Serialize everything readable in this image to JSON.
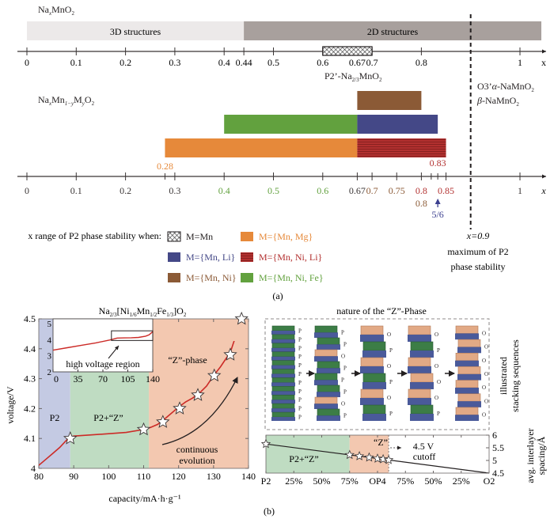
{
  "colors": {
    "axis": "#3a3535",
    "struct3d": "#ece9e9",
    "struct2d": "#a8a09d",
    "mg": "#e6893a",
    "li": "#444887",
    "ni": "#8b5a36",
    "nili": "#b2302f",
    "nife": "#62a13e",
    "dashed": "#231f20",
    "p2_bg": "#c4cae3",
    "p2z_bg": "#bfdcc2",
    "z_bg": "#f3c8b0",
    "curve": "#cc2b27",
    "arrow_blue": "#3b3f8f"
  },
  "panel_a": {
    "label": "(a)",
    "top": {
      "formula_parts": [
        "Na",
        "x",
        "MnO",
        "2"
      ],
      "structures": [
        {
          "label": "3D structures",
          "from": 0,
          "to": 0.44
        },
        {
          "label": "2D structures",
          "from": 0.44,
          "to": 1.08
        }
      ],
      "mn_bar": {
        "from": 0.6,
        "to": 0.7
      },
      "ticks": [
        "0",
        "0.1",
        "0.2",
        "0.3",
        "0.4",
        "0.44",
        "0.5",
        "0.6",
        "0.67",
        "0.7",
        "0.8",
        "1"
      ],
      "tick_values": [
        0,
        0.1,
        0.2,
        0.3,
        0.4,
        0.44,
        0.5,
        0.6,
        0.67,
        0.7,
        0.8,
        1
      ],
      "axis_label": "x",
      "p2_label_parts": [
        "P2’-Na",
        "2/3",
        "MnO",
        "2"
      ],
      "o3_label_parts": [
        "O3’",
        "α",
        "-NaMnO",
        "2"
      ],
      "beta_label_parts": [
        "β",
        "-NaMnO",
        "2"
      ]
    },
    "bottom": {
      "formula_parts": [
        "Na",
        "x",
        "Mn",
        "1−y",
        "M",
        "y",
        "O",
        "2"
      ],
      "bars": [
        {
          "name": "mn-ni",
          "from": 0.67,
          "to": 0.8,
          "color_key": "ni"
        },
        {
          "name": "mn-ni-fe",
          "from": 0.4,
          "to": 0.67,
          "color_key": "nife"
        },
        {
          "name": "mn-li",
          "from": 0.67,
          "to": 0.8333,
          "color_key": "li"
        },
        {
          "name": "mn-mg",
          "from": 0.28,
          "to": 0.67,
          "color_key": "mg"
        },
        {
          "name": "mn-ni-li",
          "from": 0.67,
          "to": 0.85,
          "color_key": "nili"
        }
      ],
      "ticks": [
        {
          "label": "0",
          "value": 0,
          "color_key": "axis"
        },
        {
          "label": "0.1",
          "value": 0.1,
          "color_key": "axis"
        },
        {
          "label": "0.2",
          "value": 0.2,
          "color_key": "axis"
        },
        {
          "label": "0.3",
          "value": 0.3,
          "color_key": "axis"
        },
        {
          "label": "0.4",
          "value": 0.4,
          "color_key": "nife"
        },
        {
          "label": "0.5",
          "value": 0.5,
          "color_key": "nife"
        },
        {
          "label": "0.6",
          "value": 0.6,
          "color_key": "nife"
        },
        {
          "label": "0.67",
          "value": 0.67,
          "color_key": "axis"
        },
        {
          "label": "0.7",
          "value": 0.7,
          "color_key": "ni"
        },
        {
          "label": "0.75",
          "value": 0.75,
          "color_key": "ni"
        },
        {
          "label": "0.8",
          "value": 0.8,
          "color_key": "nili"
        },
        {
          "label": "0.85",
          "value": 0.85,
          "color_key": "nili"
        },
        {
          "label": "1",
          "value": 1,
          "color_key": "axis"
        }
      ],
      "minor_ticks": [
        0.28,
        0.82,
        0.8333
      ],
      "label_028": "0.28",
      "label_083": "0.83",
      "label_08_ni": "0.8",
      "label_5_6": "5/6",
      "axis_label": "x",
      "max_line_x": 0.9,
      "max_text": [
        "x=0.9",
        "maximum of P2",
        "phase stability"
      ]
    },
    "legend": {
      "title": "x range of P2 phase stability when:",
      "items": [
        {
          "label": "M=Mn",
          "color_key": "axis",
          "pattern": "hatch"
        },
        {
          "label": "M={Mn, Mg}",
          "color_key": "mg",
          "pattern": "solid"
        },
        {
          "label": "M={Mn, Li}",
          "color_key": "li",
          "pattern": "solid"
        },
        {
          "label": "M={Mn, Ni, Li}",
          "color_key": "nili",
          "pattern": "stripes"
        },
        {
          "label": "M={Mn, Ni}",
          "color_key": "ni",
          "pattern": "solid"
        },
        {
          "label": "M={Mn, Ni, Fe}",
          "color_key": "nife",
          "pattern": "solid"
        }
      ]
    }
  },
  "panel_b": {
    "label": "(b)",
    "chart_data": [
      {
        "type": "line",
        "title_parts": [
          "Na",
          "2/3",
          "[Ni",
          "1/6",
          "Mn",
          "1/2",
          "Fe",
          "1/3",
          "]O",
          "2"
        ],
        "xlabel": "capacity/mA·h·g⁻¹",
        "ylabel": "voltage/V",
        "xlim": [
          80,
          140
        ],
        "ylim": [
          4.0,
          4.5
        ],
        "xticks": [
          80,
          90,
          100,
          110,
          120,
          130,
          140
        ],
        "yticks": [
          4.0,
          4.1,
          4.2,
          4.3,
          4.4,
          4.5
        ],
        "ytick_labels": [
          "4",
          "4.1",
          "4.2",
          "4.3",
          "4.4",
          "4.5"
        ],
        "regions": [
          {
            "label": "P2",
            "from": 80,
            "to": 89,
            "color_key": "p2_bg"
          },
          {
            "label": "P2+“Z”",
            "from": 89,
            "to": 111.5,
            "color_key": "p2z_bg"
          },
          {
            "label": "“Z”-phase",
            "from": 111.5,
            "to": 140,
            "color_key": "z_bg"
          }
        ],
        "series": [
          {
            "name": "charge curve",
            "x": [
              80,
              82,
              84,
              86,
              88,
              89,
              90,
              95,
              100,
              105,
              110,
              112,
              114,
              116,
              118,
              120,
              122,
              124,
              126,
              128,
              130,
              132,
              134,
              135,
              136,
              137,
              138
            ],
            "y": [
              4.01,
              4.03,
              4.05,
              4.07,
              4.095,
              4.105,
              4.108,
              4.112,
              4.116,
              4.12,
              4.13,
              4.137,
              4.147,
              4.165,
              4.185,
              4.205,
              4.222,
              4.235,
              4.252,
              4.275,
              4.31,
              4.34,
              4.375,
              4.395,
              4.43,
              4.47,
              4.5
            ]
          }
        ],
        "markers": {
          "x": [
            89,
            110,
            115.5,
            120.3,
            125.5,
            130.2,
            134.8,
            138
          ],
          "y": [
            4.1,
            4.13,
            4.155,
            4.2,
            4.245,
            4.31,
            4.38,
            4.5
          ]
        },
        "annotations": [
          "continuous",
          "evolution"
        ],
        "inset": {
          "xlim": [
            0,
            140
          ],
          "ylim": [
            2,
            5
          ],
          "xticks": [
            0,
            35,
            70,
            105,
            140
          ],
          "yticks": [
            2,
            3,
            4,
            5
          ],
          "x": [
            0,
            20,
            40,
            60,
            80,
            90,
            100,
            110,
            120,
            130,
            135,
            140
          ],
          "y": [
            3.35,
            3.5,
            3.65,
            3.8,
            3.98,
            4.1,
            4.11,
            4.12,
            4.14,
            4.22,
            4.3,
            4.5
          ],
          "box": {
            "x": [
              82,
              140
            ],
            "y": [
              3.95,
              4.55
            ]
          },
          "label": "high voltage region"
        }
      },
      {
        "type": "line",
        "title": "nature of the “Z”-Phase",
        "ylabel_lines": [
          "avg. interlayer",
          "spacing/Å"
        ],
        "side_label_lines": [
          "illustrated",
          "stacking sequences"
        ],
        "xtick_labels": [
          "P2",
          "25%",
          "50%",
          "75%",
          "OP4",
          "75%",
          "50%",
          "25%",
          "O2"
        ],
        "xlim": [
          0,
          8
        ],
        "ylim": [
          4.5,
          6
        ],
        "yticks": [
          4.5,
          5,
          5.5,
          6
        ],
        "ytick_labels": [
          "4.5",
          "5",
          "5.5",
          "6"
        ],
        "regions": [
          {
            "label": "P2+“Z”",
            "from": 0,
            "to": 3,
            "color_key": "p2z_bg"
          },
          {
            "label": "“Z”",
            "from": 3,
            "to": 4.4,
            "color_key": "z_bg"
          }
        ],
        "series": [
          {
            "name": "avg. interlayer spacing",
            "x": [
              0,
              8
            ],
            "y": [
              5.65,
              4.5
            ]
          }
        ],
        "markers": {
          "x": [
            0,
            3.0,
            3.35,
            3.7,
            4.0,
            4.2,
            4.4
          ],
          "y": [
            5.65,
            5.22,
            5.17,
            5.12,
            5.075,
            5.05,
            5.02
          ]
        },
        "cutoff_label": [
          "4.5 V",
          "cutoff"
        ],
        "stacking": [
          [
            "P",
            "P",
            "P",
            "P",
            "P",
            "P",
            "P",
            "P",
            "P",
            "P",
            "P"
          ],
          [
            "P",
            "P",
            "O",
            "P",
            "P",
            "P",
            "O",
            "P"
          ],
          [
            "O",
            "P",
            "O",
            "P",
            "O",
            "P"
          ],
          [
            "O",
            "P",
            "O",
            "O",
            "O",
            "P"
          ],
          [
            "O",
            "O",
            "O",
            "O",
            "O",
            "O",
            "O"
          ]
        ]
      }
    ]
  }
}
